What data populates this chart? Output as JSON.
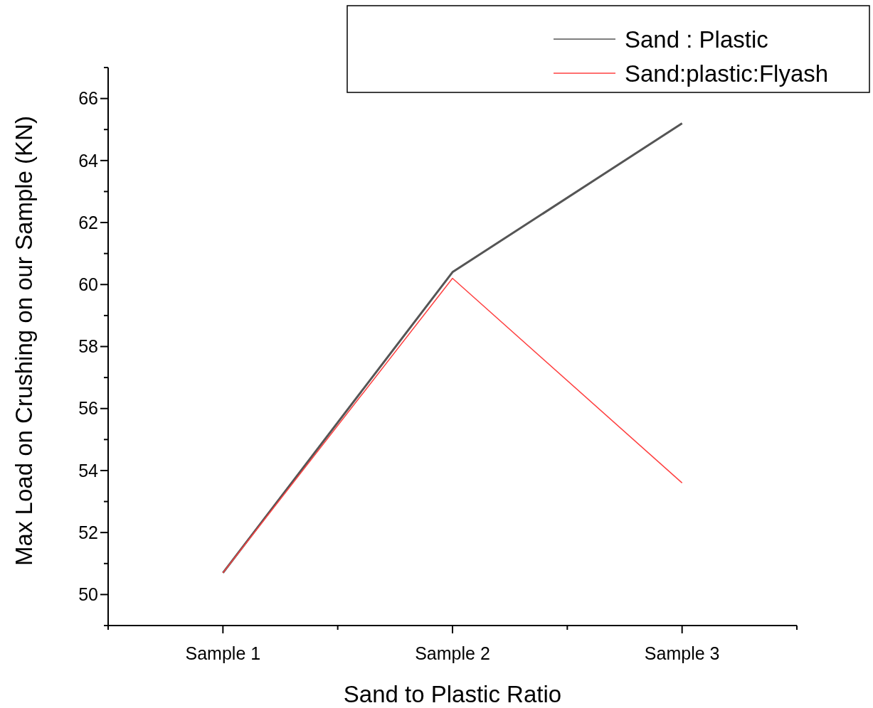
{
  "chart_data": {
    "type": "line",
    "xlabel": "Sand to Plastic Ratio",
    "ylabel": "Max Load on Crushing on our Sample (KN)",
    "categories": [
      "Sample 1",
      "Sample 2",
      "Sample 3"
    ],
    "series": [
      {
        "name": "Sand : Plastic",
        "color": "#555555",
        "values": [
          50.7,
          60.4,
          65.2
        ]
      },
      {
        "name": "Sand:plastic:Flyash",
        "color": "#ff4040",
        "values": [
          50.7,
          60.2,
          53.6
        ]
      }
    ],
    "ylim": [
      49,
      67
    ],
    "yticks": [
      50,
      52,
      54,
      56,
      58,
      60,
      62,
      64,
      66
    ],
    "grid": false,
    "legend": "top right",
    "marker": "none",
    "line_style": "solid"
  }
}
